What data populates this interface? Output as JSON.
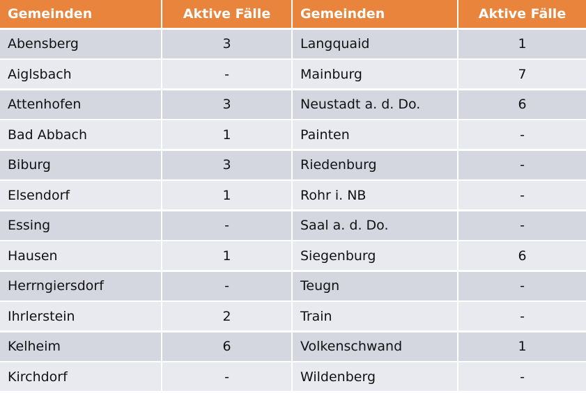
{
  "table": {
    "header": [
      "Gemeinden",
      "Aktive Fälle",
      "Gemeinden",
      "Aktive Fälle"
    ],
    "rows": [
      [
        "Abensberg",
        3,
        "Langquaid",
        1
      ],
      [
        "Aiglsbach",
        "-",
        "Mainburg",
        7
      ],
      [
        "Attenhofen",
        3,
        "Neustadt a. d. Do.",
        6
      ],
      [
        "Bad Abbach",
        1,
        "Painten",
        "-"
      ],
      [
        "Biburg",
        3,
        "Riedenburg",
        "-"
      ],
      [
        "Elsendorf",
        1,
        "Rohr i. NB",
        "-"
      ],
      [
        "Essing",
        "-",
        "Saal a. d. Do.",
        "-"
      ],
      [
        "Hausen",
        1,
        "Siegenburg",
        6
      ],
      [
        "Herrngiersdorf",
        "-",
        "Teugn",
        "-"
      ],
      [
        "Ihrlerstein",
        2,
        "Train",
        "-"
      ],
      [
        "Kelheim",
        6,
        "Volkenschwand",
        1
      ],
      [
        "Kirchdorf",
        "-",
        "Wildenberg",
        "-"
      ]
    ]
  }
}
